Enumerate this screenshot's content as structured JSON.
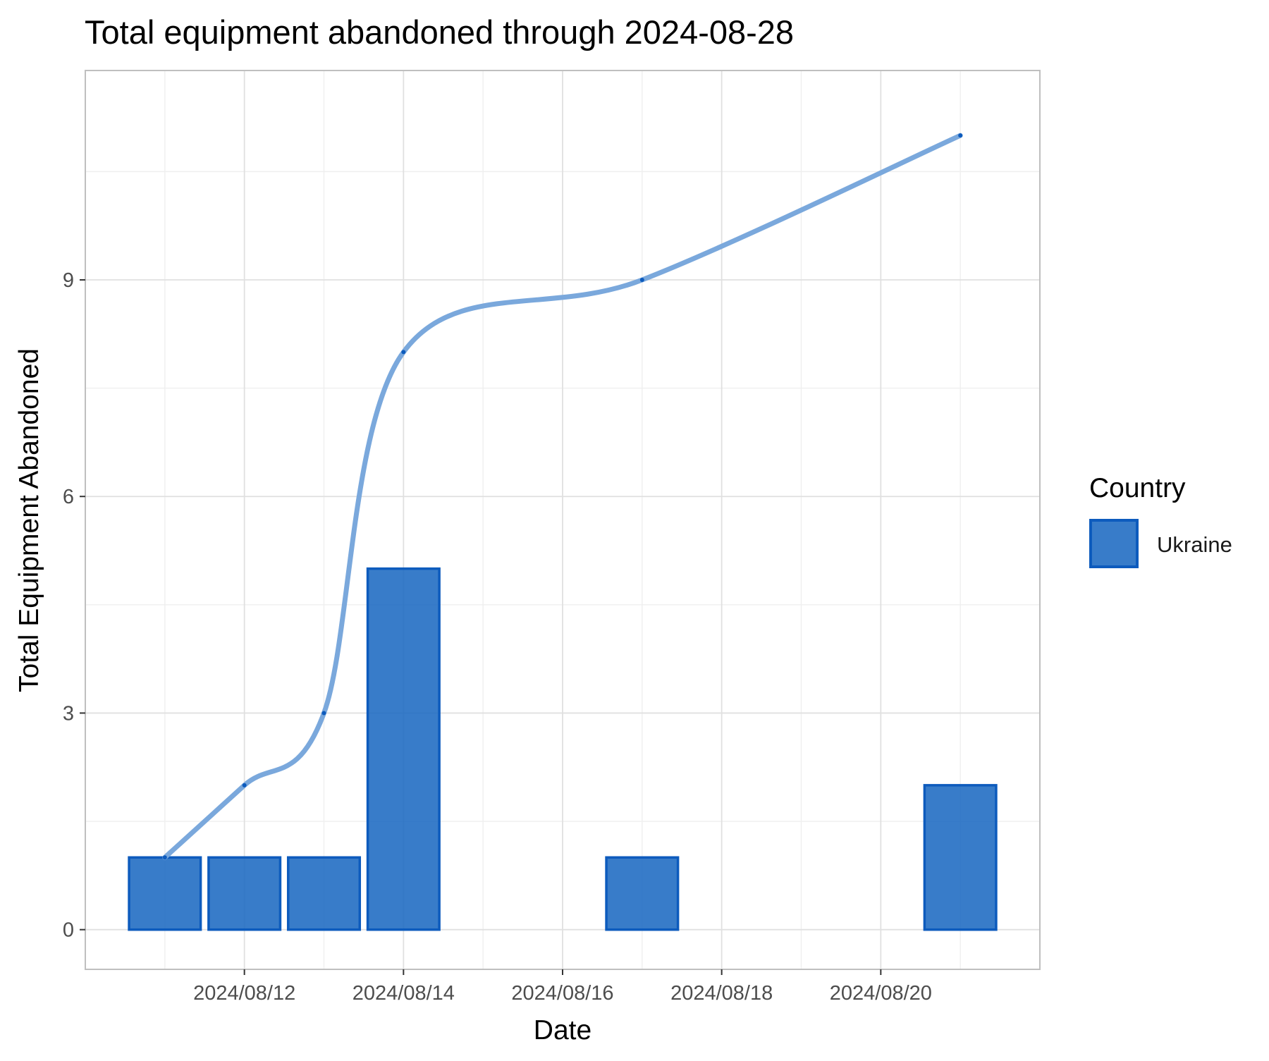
{
  "chart_data": {
    "type": "bar",
    "title": "Total equipment abandoned through 2024-08-28",
    "xlabel": "Date",
    "ylabel": "Total Equipment Abandoned",
    "x_ticks": [
      "2024/08/12",
      "2024/08/14",
      "2024/08/16",
      "2024/08/18",
      "2024/08/20"
    ],
    "y_ticks": [
      0,
      3,
      6,
      9
    ],
    "xlim": [
      "2024-08-10",
      "2024-08-22"
    ],
    "ylim": [
      -0.55,
      11.9
    ],
    "grid": true,
    "legend_placement": "right",
    "legend": {
      "title": "Country",
      "entries": [
        {
          "label": "Ukraine",
          "color": "#1565c0"
        }
      ]
    },
    "series": [
      {
        "name": "Ukraine",
        "kind": "bar",
        "x": [
          "2024-08-11",
          "2024-08-12",
          "2024-08-13",
          "2024-08-14",
          "2024-08-17",
          "2024-08-21"
        ],
        "values": [
          1,
          1,
          1,
          5,
          1,
          2
        ]
      },
      {
        "kind": "cumulative-line",
        "smoothed": true,
        "x": [
          "2024-08-11",
          "2024-08-12",
          "2024-08-13",
          "2024-08-14",
          "2024-08-17",
          "2024-08-21"
        ],
        "values": [
          1,
          2,
          3,
          8,
          9,
          11
        ]
      }
    ],
    "colors": {
      "bar_fill": "#1565c0",
      "bar_stroke": "#0d5bbd",
      "line": "#7aa8dc",
      "point": "#0d5bbd",
      "grid_major": "#e0e0e0",
      "grid_minor": "#efefef",
      "panel_border": "#bfbfbf"
    }
  }
}
